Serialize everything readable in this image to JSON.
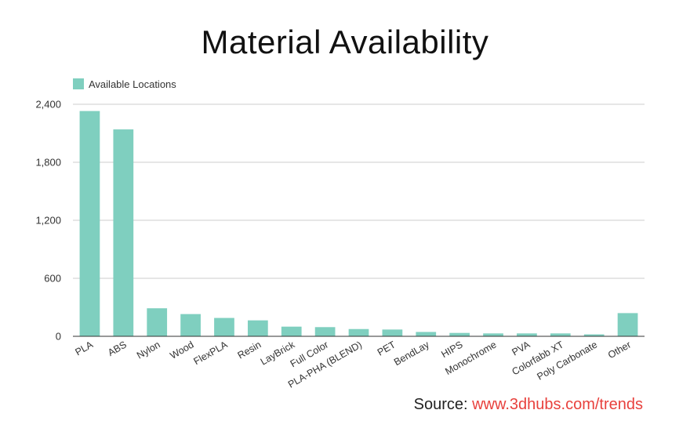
{
  "title": "Material Availability",
  "legend": {
    "label": "Available Locations"
  },
  "source": {
    "label": "Source:",
    "link": "www.3dhubs.com/trends"
  },
  "colors": {
    "bar": "#7fcfbf",
    "grid": "#cccccc",
    "axis": "#333333",
    "link": "#e8413d"
  },
  "chart_data": {
    "type": "bar",
    "title": "Material Availability",
    "categories": [
      "PLA",
      "ABS",
      "Nylon",
      "Wood",
      "FlexPLA",
      "Resin",
      "LayBrick",
      "Full Color",
      "PLA-PHA (BLEND)",
      "PET",
      "BendLay",
      "HIPS",
      "Monochrome",
      "PVA",
      "Colorfabb XT",
      "Poly Carbonate",
      "Other"
    ],
    "series": [
      {
        "name": "Available Locations",
        "values": [
          2330,
          2140,
          290,
          230,
          190,
          165,
          100,
          95,
          75,
          70,
          45,
          35,
          30,
          30,
          30,
          20,
          240
        ]
      }
    ],
    "ylim": [
      0,
      2400
    ],
    "yticks": [
      0,
      600,
      1200,
      1800,
      2400
    ],
    "ytick_labels": [
      "0",
      "600",
      "1,200",
      "1,800",
      "2,400"
    ],
    "grid": true,
    "legend_position": "top-left"
  }
}
